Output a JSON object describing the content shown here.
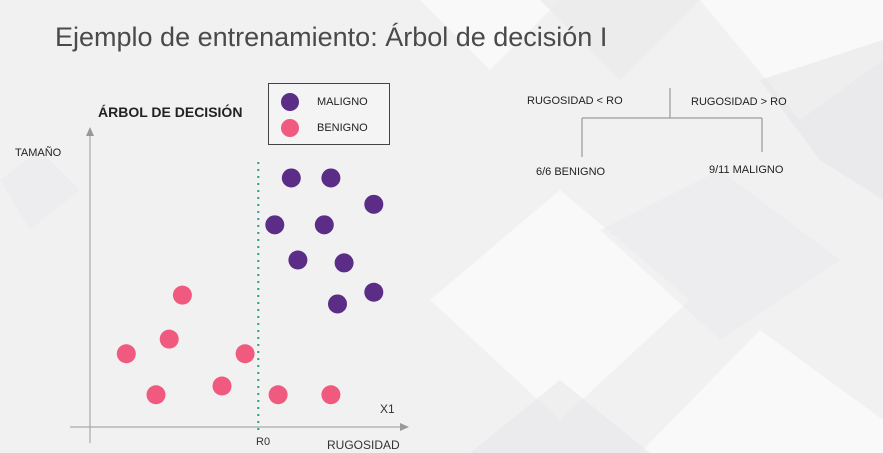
{
  "slide": {
    "title": "Ejemplo de entrenamiento: Árbol de decisión I",
    "subtitle": "ÁRBOL DE DECISIÓN"
  },
  "legend": {
    "items": [
      {
        "label": "MALIGNO",
        "color": "#5b2d86"
      },
      {
        "label": "BENIGNO",
        "color": "#f05a7e"
      }
    ]
  },
  "axes": {
    "y_label": "TAMAÑO",
    "x_label": "RUGOSIDAD",
    "x1_label": "X1",
    "threshold_label": "R0"
  },
  "tree": {
    "left_condition": "RUGOSIDAD < RO",
    "right_condition": "RUGOSIDAD >  RO",
    "left_result": "6/6  BENIGNO",
    "right_result": "9/11  MALIGNO"
  },
  "chart_data": {
    "type": "scatter",
    "x_range": [
      0,
      100
    ],
    "y_range": [
      0,
      100
    ],
    "threshold_x": 51,
    "threshold_color": "#2e9e84",
    "series": [
      {
        "name": "MALIGNO",
        "color": "#5b2d86",
        "points": [
          [
            61,
            85
          ],
          [
            73,
            85
          ],
          [
            86,
            76
          ],
          [
            56,
            69
          ],
          [
            71,
            69
          ],
          [
            63,
            57
          ],
          [
            77,
            56
          ],
          [
            86,
            46
          ],
          [
            75,
            42
          ]
        ]
      },
      {
        "name": "BENIGNO",
        "color": "#f05a7e",
        "points": [
          [
            28,
            45
          ],
          [
            24,
            30
          ],
          [
            11,
            25
          ],
          [
            47,
            25
          ],
          [
            40,
            14
          ],
          [
            20,
            11
          ],
          [
            57,
            11
          ],
          [
            73,
            11
          ]
        ]
      }
    ]
  }
}
